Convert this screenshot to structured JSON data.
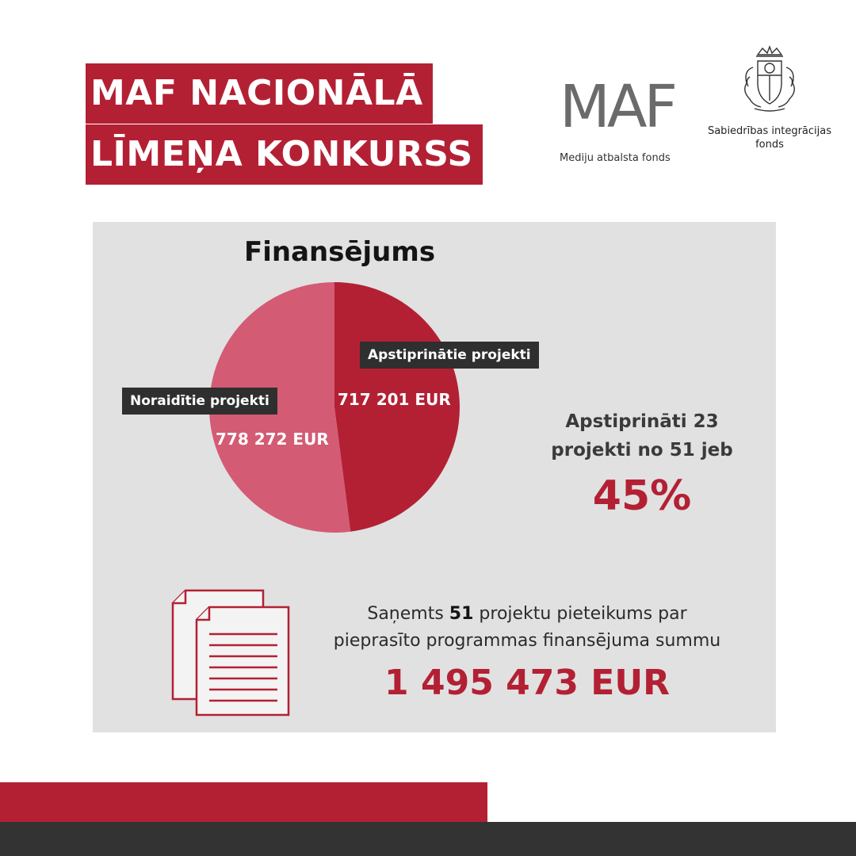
{
  "header": {
    "title_line1": "MAF NACIONĀLĀ",
    "title_line2": "LĪMEŅA KONKURSS"
  },
  "logos": {
    "maf_mark": "MAF",
    "maf_name": "Mediju atbalsta fonds",
    "sif_emblem_icon": "latvian-coat-of-arms-icon",
    "sif_name_line1": "Sabiedrības integrācijas",
    "sif_name_line2": "fonds"
  },
  "chart_data": {
    "type": "pie",
    "title": "Finansējums",
    "slices": [
      {
        "label": "Apstiprinātie projekti",
        "value": 717201,
        "value_label": "717 201 EUR",
        "color": "#b32034"
      },
      {
        "label": "Noraidītie projekti",
        "value": 778272,
        "value_label": "778 272 EUR",
        "color": "#d45b74"
      }
    ],
    "unit": "EUR"
  },
  "stats": {
    "approved_line1": "Apstiprināti 23",
    "approved_line2": "projekti no 51 jeb",
    "approved_percent": "45%"
  },
  "summary": {
    "text_before": "Saņemts ",
    "count": "51",
    "text_after": " projektu pieteikums par",
    "text_line2": "pieprasīto programmas finansējuma summu",
    "total": "1 495 473 EUR",
    "docs_icon": "documents-icon"
  },
  "colors": {
    "accent": "#b32034",
    "accent_light": "#d45b74",
    "panel": "#e1e1e1",
    "dark": "#333333"
  }
}
